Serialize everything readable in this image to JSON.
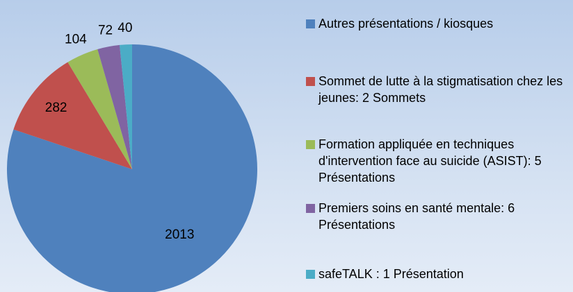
{
  "chart_data": {
    "type": "pie",
    "categories": [
      "Autres présentations / kiosques",
      "Sommet  de lutte à la stigmatisation chez les jeunes: 2 Sommets",
      "Formation appliquée en techniques d'intervention face au suicide (ASIST): 5 Présentations",
      "Premiers soins en santé mentale: 6 Présentations",
      "safeTALK : 1 Présentation"
    ],
    "values": [
      2013,
      282,
      104,
      72,
      40
    ],
    "colors": [
      "#4f81bd",
      "#c0504d",
      "#9bbb59",
      "#8064a2",
      "#4bacc6"
    ],
    "legend": "right"
  }
}
